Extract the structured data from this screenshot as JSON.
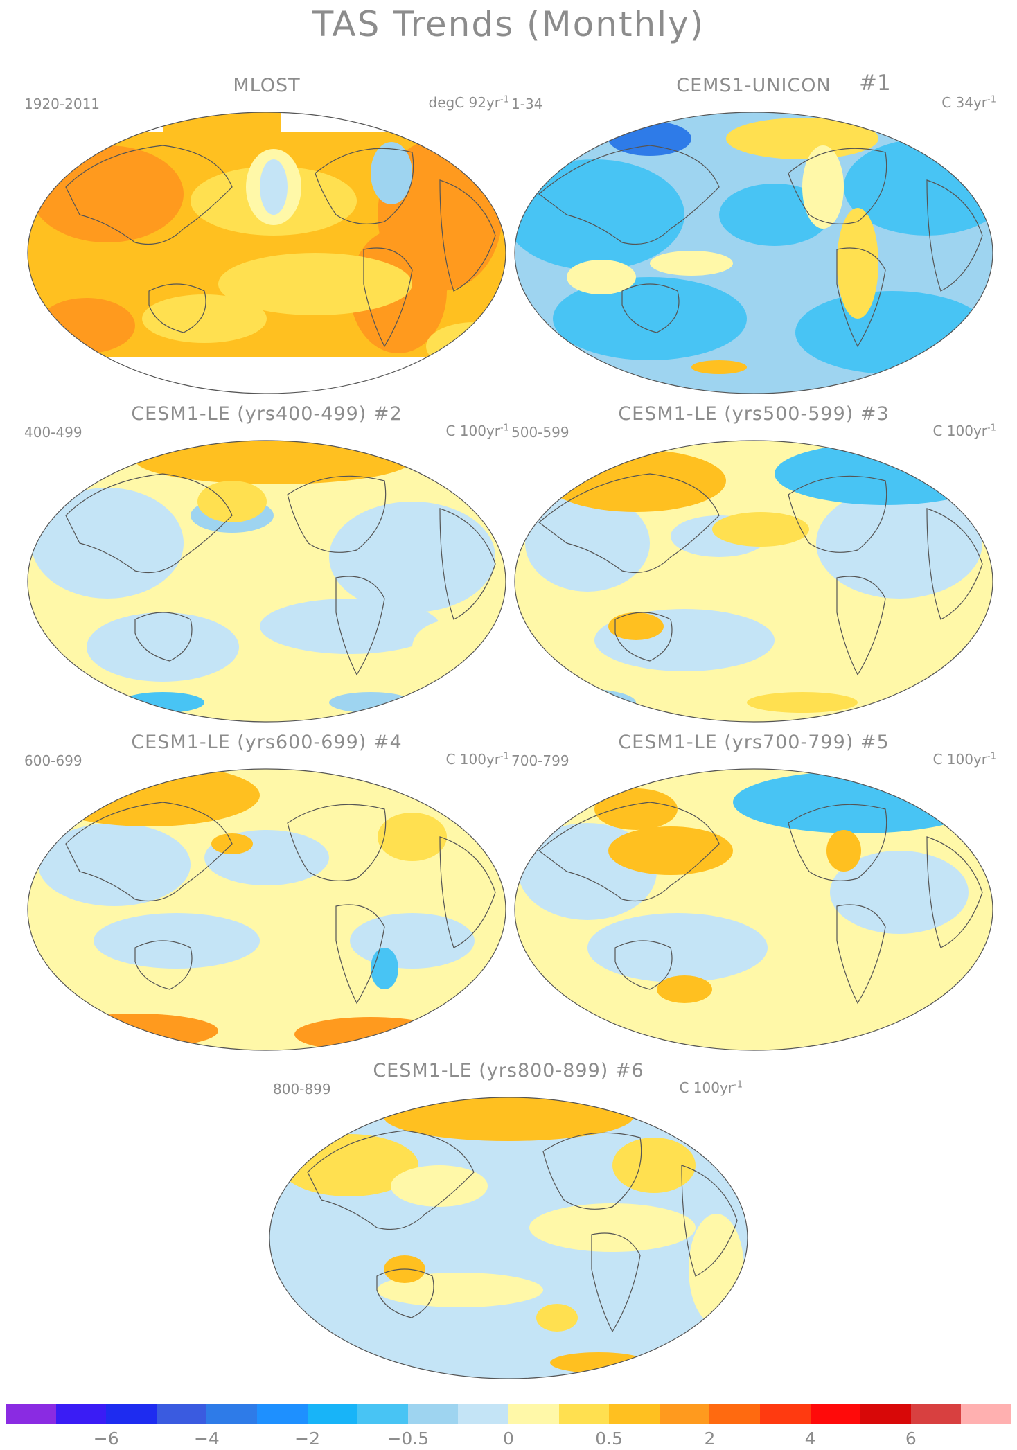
{
  "figure": {
    "title": "TAS Trends (Monthly)"
  },
  "panels": [
    {
      "id": "mlost",
      "title": "MLOST",
      "number": "",
      "period": "1920-2011",
      "unit": "degC 92yr",
      "unit_exp": "-1",
      "style": "warm"
    },
    {
      "id": "cems1-unicon",
      "title": "CEMS1-UNICON",
      "number": "#1",
      "period": "1-34",
      "unit": "C 34yr",
      "unit_exp": "-1",
      "style": "cool"
    },
    {
      "id": "le-400",
      "title": "CESM1-LE (yrs400-499) #2",
      "number": "",
      "period": "400-499",
      "unit": "C 100yr",
      "unit_exp": "-1",
      "style": "mixed1"
    },
    {
      "id": "le-500",
      "title": "CESM1-LE (yrs500-599) #3",
      "number": "",
      "period": "500-599",
      "unit": "C 100yr",
      "unit_exp": "-1",
      "style": "mixed2"
    },
    {
      "id": "le-600",
      "title": "CESM1-LE (yrs600-699) #4",
      "number": "",
      "period": "600-699",
      "unit": "C 100yr",
      "unit_exp": "-1",
      "style": "mixed3"
    },
    {
      "id": "le-700",
      "title": "CESM1-LE (yrs700-799) #5",
      "number": "",
      "period": "700-799",
      "unit": "C 100yr",
      "unit_exp": "-1",
      "style": "mixed4"
    },
    {
      "id": "le-800",
      "title": "CESM1-LE (yrs800-899) #6",
      "number": "",
      "period": "800-899",
      "unit": "C 100yr",
      "unit_exp": "-1",
      "style": "mixed5"
    }
  ],
  "colorbar": {
    "colors": [
      "#8a2be2",
      "#3a1cf5",
      "#1e2cf0",
      "#3a5be0",
      "#2e7be8",
      "#1e90ff",
      "#18b4f8",
      "#48c4f4",
      "#9ed4f0",
      "#c4e4f6",
      "#fff8a8",
      "#ffe050",
      "#ffc020",
      "#ff9a1e",
      "#ff6a10",
      "#ff3a10",
      "#ff0a0a",
      "#d80808",
      "#d84040",
      "#ffb0b0"
    ],
    "labels": [
      "-6",
      "-4",
      "-2",
      "-0.5",
      "0",
      "0.5",
      "2",
      "4",
      "6"
    ],
    "label_boundaries": [
      2,
      4,
      6,
      8,
      10,
      12,
      14,
      16,
      18
    ]
  }
}
